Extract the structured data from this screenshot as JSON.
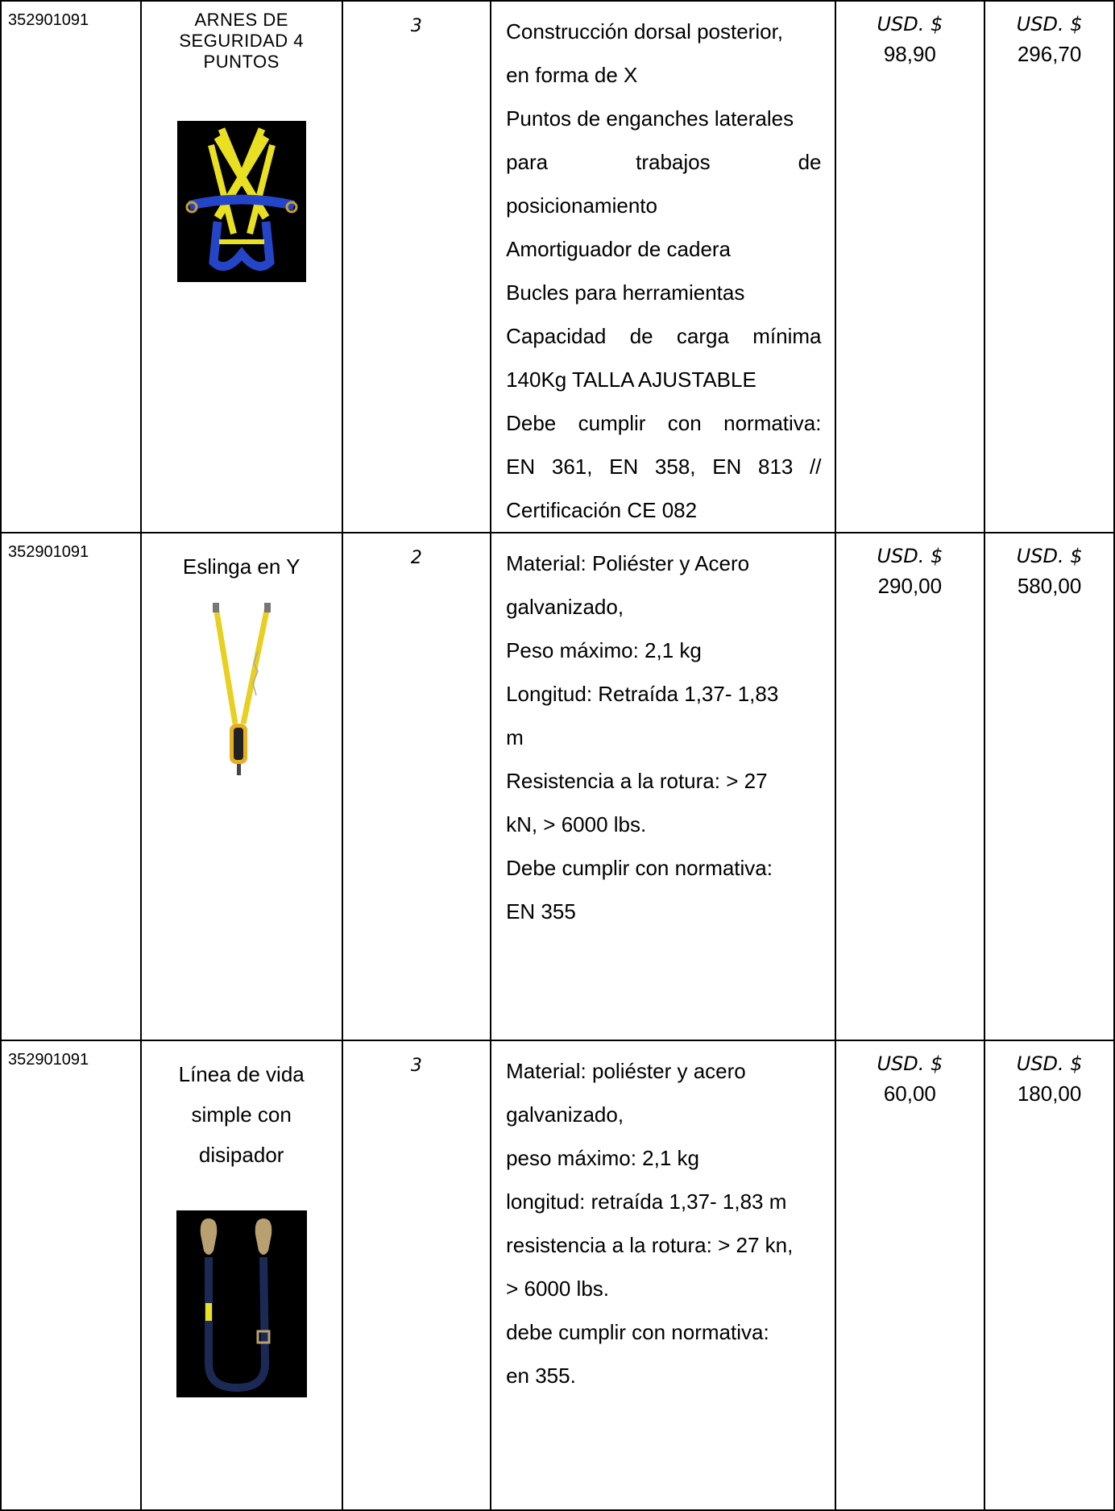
{
  "rows": [
    {
      "code": "352901091",
      "name_lines": [
        "ARNES DE",
        "SEGURIDAD 4",
        "PUNTOS"
      ],
      "qty": "3",
      "desc_lines": [
        "Construcción dorsal posterior,",
        "en forma de X",
        "Puntos de enganches laterales",
        "para trabajos de",
        "posicionamiento",
        "Amortiguador de cadera",
        "Bucles para herramientas",
        "Capacidad de carga mínima",
        "140Kg TALLA AJUSTABLE",
        "Debe cumplir con normativa:",
        "EN 361, EN 358, EN 813 //",
        "Certificación CE 082"
      ],
      "currency": "USD. $",
      "unit_price": "98,90",
      "total_price": "296,70",
      "image_icon": "safety-harness-icon"
    },
    {
      "code": "352901091",
      "name_lines": [
        "Eslinga en Y"
      ],
      "qty": "2",
      "desc_lines": [
        "Material: Poliéster y Acero",
        "galvanizado,",
        "Peso máximo: 2,1 kg",
        "Longitud: Retraída 1,37- 1,83",
        "m",
        "Resistencia a la rotura: > 27",
        "kN, > 6000 lbs.",
        "Debe cumplir con normativa:",
        "EN 355"
      ],
      "currency": "USD. $",
      "unit_price": "290,00",
      "total_price": "580,00",
      "image_icon": "y-lanyard-icon"
    },
    {
      "code": "352901091",
      "name_lines": [
        "Línea de vida",
        "simple con",
        "disipador"
      ],
      "qty": "3",
      "desc_lines": [
        "Material: poliéster y acero",
        "galvanizado,",
        "peso máximo: 2,1 kg",
        "longitud: retraída 1,37- 1,83 m",
        "resistencia a la rotura: > 27 kn,",
        "> 6000 lbs.",
        "debe cumplir con normativa:",
        "en 355."
      ],
      "currency": "USD. $",
      "unit_price": "60,00",
      "total_price": "180,00",
      "image_icon": "lifeline-lanyard-icon"
    }
  ]
}
